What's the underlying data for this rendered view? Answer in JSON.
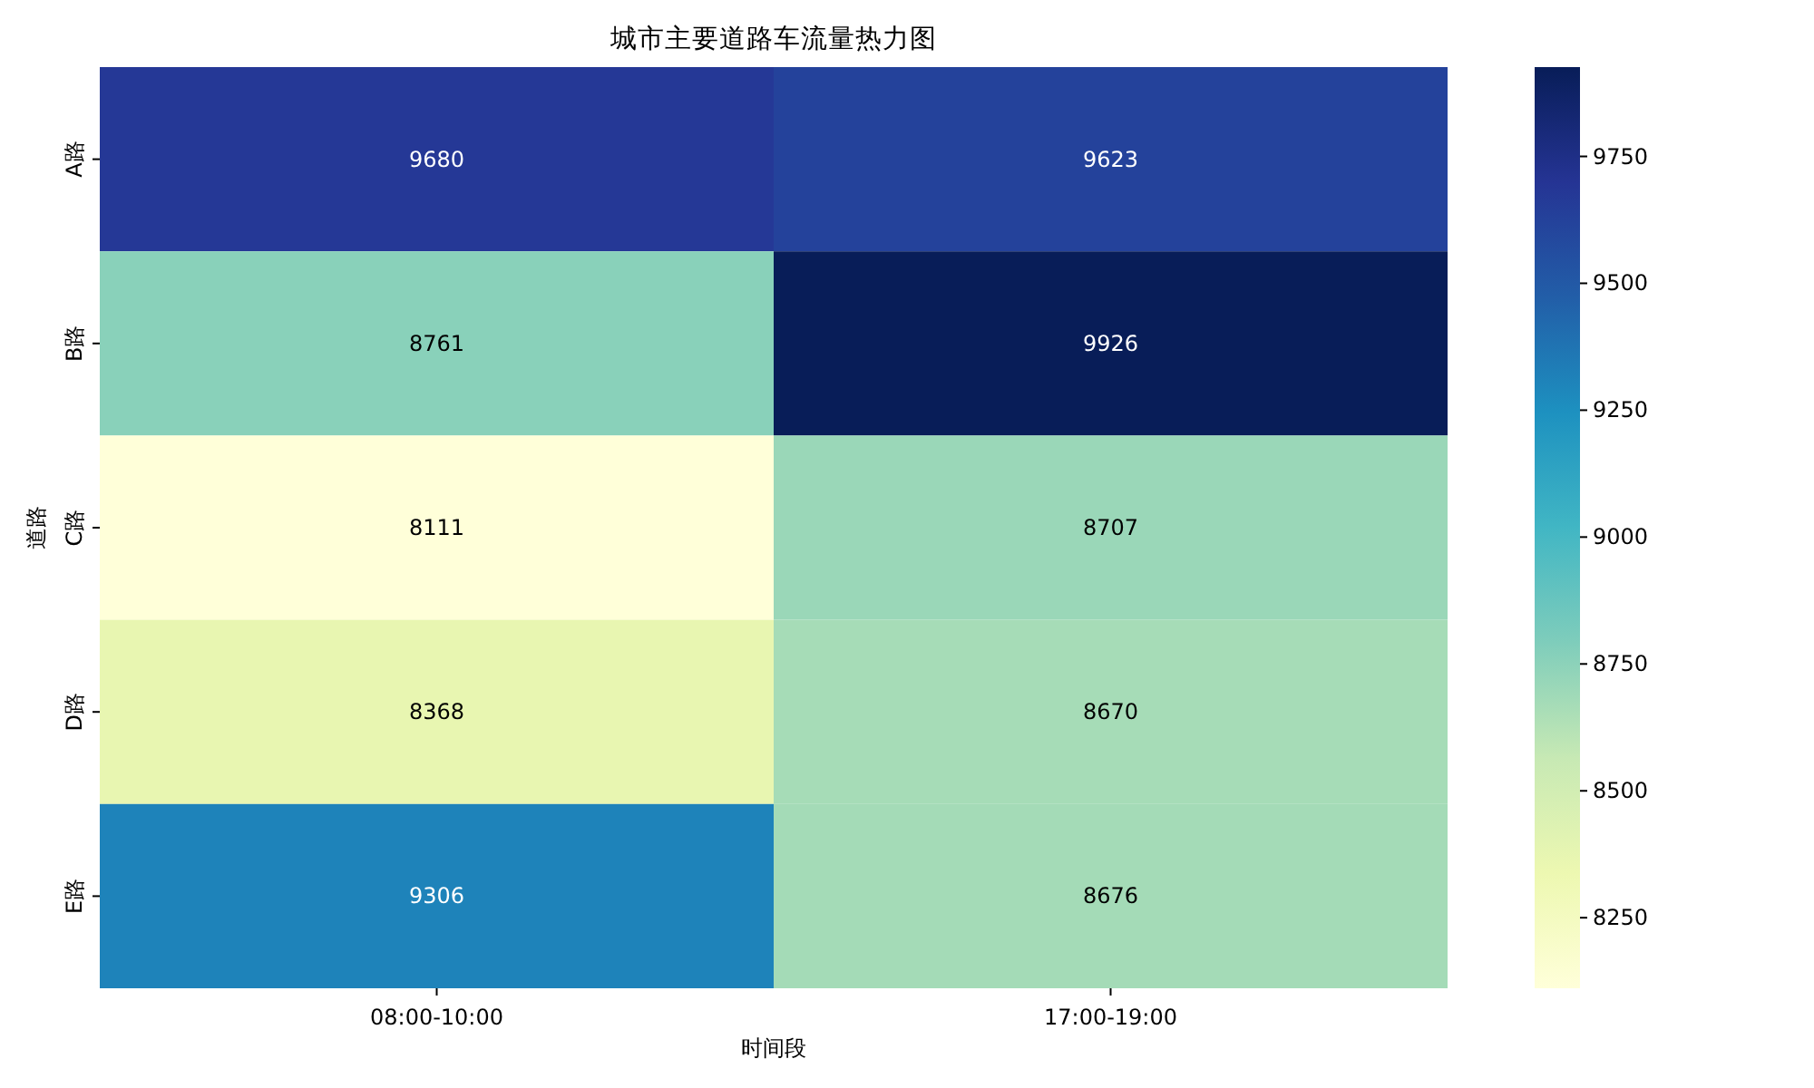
{
  "chart_data": {
    "type": "heatmap",
    "title": "城市主要道路车流量热力图",
    "xlabel": "时间段",
    "ylabel": "道路",
    "categories": [
      "08:00-10:00",
      "17:00-19:00"
    ],
    "y_categories": [
      "A路",
      "B路",
      "C路",
      "D路",
      "E路"
    ],
    "cells": [
      [
        9680,
        9623
      ],
      [
        8761,
        9926
      ],
      [
        8111,
        8707
      ],
      [
        8368,
        8670
      ],
      [
        9306,
        8676
      ]
    ],
    "clim": [
      8111,
      9926
    ],
    "cticks": [
      8250,
      8500,
      8750,
      9000,
      9250,
      9500,
      9750
    ],
    "data_labels": true
  }
}
